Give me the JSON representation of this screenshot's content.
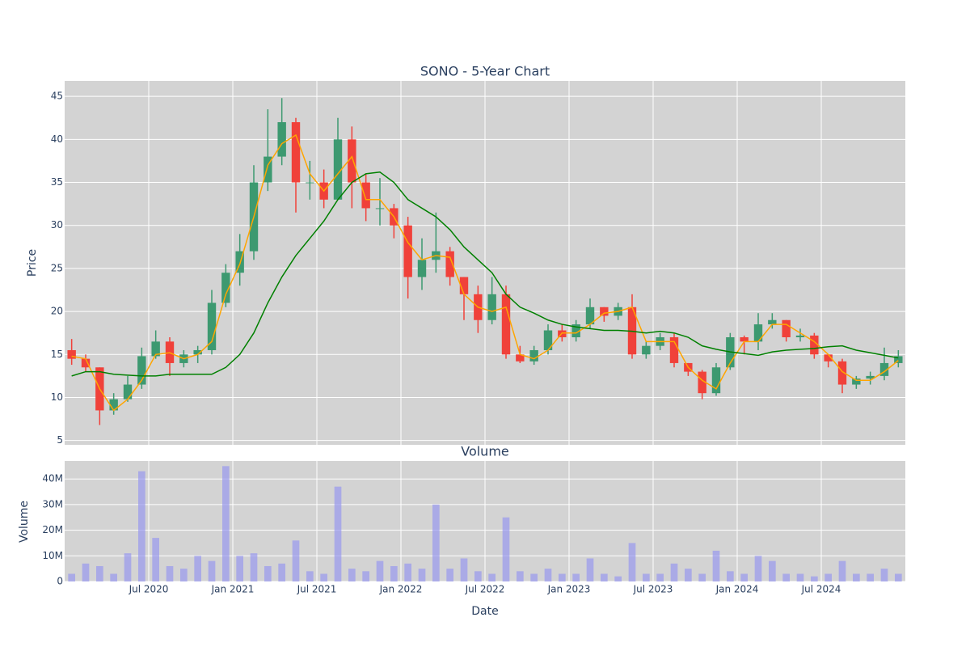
{
  "chart_data": [
    {
      "type": "candlestick",
      "title": "SONO - 5-Year Chart",
      "ylabel": "Price",
      "x": [
        "2020-01",
        "2020-02",
        "2020-03",
        "2020-04",
        "2020-05",
        "2020-06",
        "2020-07",
        "2020-08",
        "2020-09",
        "2020-10",
        "2020-11",
        "2020-12",
        "2021-01",
        "2021-02",
        "2021-03",
        "2021-04",
        "2021-05",
        "2021-06",
        "2021-07",
        "2021-08",
        "2021-09",
        "2021-10",
        "2021-11",
        "2021-12",
        "2022-01",
        "2022-02",
        "2022-03",
        "2022-04",
        "2022-05",
        "2022-06",
        "2022-07",
        "2022-08",
        "2022-09",
        "2022-10",
        "2022-11",
        "2022-12",
        "2023-01",
        "2023-02",
        "2023-03",
        "2023-04",
        "2023-05",
        "2023-06",
        "2023-07",
        "2023-08",
        "2023-09",
        "2023-10",
        "2023-11",
        "2023-12",
        "2024-01",
        "2024-02",
        "2024-03",
        "2024-04",
        "2024-05",
        "2024-06",
        "2024-07",
        "2024-08",
        "2024-09",
        "2024-10",
        "2024-11",
        "2024-12"
      ],
      "open": [
        15.5,
        14.5,
        13.5,
        8.5,
        9.8,
        11.5,
        14.8,
        16.5,
        14,
        15,
        15.5,
        21,
        24.5,
        27,
        35,
        38,
        42,
        35,
        35,
        33,
        40,
        35,
        32,
        32,
        30,
        24,
        26,
        27,
        24,
        22,
        19,
        22,
        15,
        14.2,
        15.5,
        17.8,
        17,
        18.5,
        20.5,
        19.5,
        20.5,
        15,
        16,
        17,
        14,
        13,
        10.5,
        13.5,
        17,
        16.5,
        18.5,
        19,
        17,
        17.2,
        15,
        14.2,
        11.5,
        12.2,
        12.5,
        14
      ],
      "high": [
        16.8,
        15,
        13.5,
        10.5,
        12.5,
        15.8,
        17.8,
        17,
        15.5,
        16,
        22.5,
        25.5,
        29,
        37,
        43.5,
        44.8,
        42.5,
        37.5,
        36.5,
        42.5,
        41.5,
        36,
        35.5,
        32.5,
        31,
        28.5,
        31.5,
        27.5,
        24,
        23,
        24,
        23,
        16,
        16,
        18.5,
        18.5,
        19,
        21.5,
        20.5,
        21,
        22,
        16.5,
        17.5,
        17.5,
        14,
        13.2,
        14,
        17.5,
        17.2,
        19.8,
        19.8,
        19,
        18,
        17.5,
        15,
        14.5,
        12.5,
        13,
        15.8,
        15.5
      ],
      "low": [
        13.8,
        13,
        6.8,
        8,
        9.5,
        11,
        14.5,
        12.5,
        13.5,
        14,
        15,
        20.5,
        23,
        26,
        34,
        37,
        31.5,
        33,
        32,
        33,
        32,
        30.5,
        30,
        28.5,
        21.5,
        22.5,
        24.5,
        23,
        19,
        17.5,
        18.5,
        14.5,
        14,
        13.8,
        15,
        16.5,
        16.5,
        18,
        18.8,
        19,
        14.5,
        14.5,
        15.5,
        13.5,
        12.5,
        9.8,
        10.2,
        13.2,
        15,
        15.5,
        18,
        16.5,
        16.5,
        14.5,
        13.5,
        10.5,
        11,
        11.5,
        12,
        13.5
      ],
      "close": [
        14.5,
        13.5,
        8.5,
        9.8,
        11.5,
        14.8,
        16.5,
        14,
        15,
        15.5,
        21,
        24.5,
        27,
        35,
        38,
        42,
        35,
        35,
        33,
        40,
        35,
        32,
        32,
        30,
        24,
        26,
        27,
        24,
        22,
        19,
        22,
        15,
        14.2,
        15.5,
        17.8,
        17,
        18.5,
        20.5,
        19.5,
        20.5,
        15,
        16,
        17,
        14,
        13,
        10.5,
        13.5,
        17,
        16.5,
        18.5,
        19,
        17,
        17.2,
        15,
        14.2,
        11.5,
        12.2,
        12.5,
        14,
        14.8
      ],
      "increasing_color": "#3d9970",
      "decreasing_color": "#f0413a",
      "series": [
        {
          "color": "#ffa500",
          "values": [
            14.8,
            14.5,
            11,
            8.5,
            9.8,
            12,
            15,
            15.2,
            14.5,
            15,
            16.5,
            22,
            25.5,
            31,
            37,
            39.5,
            40.5,
            36,
            34,
            36,
            38,
            33,
            33,
            31,
            28,
            26,
            26.5,
            26.3,
            22,
            20.5,
            20,
            20.5,
            15,
            14.5,
            15.5,
            17.5,
            17.5,
            18.5,
            19.8,
            20,
            20.5,
            16.5,
            16.5,
            16.5,
            13.5,
            12,
            11,
            14,
            16.5,
            16.5,
            18.5,
            18.5,
            17.5,
            16.5,
            15,
            13,
            12,
            12,
            13,
            14.3
          ]
        },
        {
          "color": "#008000",
          "values": [
            12.5,
            13,
            13,
            12.7,
            12.6,
            12.5,
            12.5,
            12.7,
            12.7,
            12.7,
            12.7,
            13.5,
            15,
            17.5,
            21,
            24,
            26.5,
            28.5,
            30.5,
            33,
            35,
            36,
            36.2,
            35,
            33,
            32,
            31,
            29.5,
            27.5,
            26,
            24.5,
            22,
            20.5,
            19.8,
            19,
            18.5,
            18.2,
            18,
            17.8,
            17.8,
            17.7,
            17.5,
            17.7,
            17.5,
            17,
            16,
            15.6,
            15.3,
            15.1,
            14.9,
            15.3,
            15.5,
            15.6,
            15.7,
            15.9,
            16,
            15.5,
            15.2,
            14.9,
            14.6
          ]
        }
      ],
      "xlim": [
        "2020-01",
        "2025-01"
      ],
      "xticks": [
        "2020-07",
        "2021-01",
        "2021-07",
        "2022-01",
        "2022-07",
        "2023-01",
        "2023-07",
        "2024-01",
        "2024-07"
      ],
      "ylim": [
        4.5,
        46.8
      ],
      "yticks": [
        5,
        10,
        15,
        20,
        25,
        30,
        35,
        40,
        45
      ],
      "grid": true
    },
    {
      "type": "bar",
      "title": "Volume",
      "ylabel": "Volume",
      "xlabel": "Date",
      "color": "#9999ee",
      "x": [
        "2020-01",
        "2020-02",
        "2020-03",
        "2020-04",
        "2020-05",
        "2020-06",
        "2020-07",
        "2020-08",
        "2020-09",
        "2020-10",
        "2020-11",
        "2020-12",
        "2021-01",
        "2021-02",
        "2021-03",
        "2021-04",
        "2021-05",
        "2021-06",
        "2021-07",
        "2021-08",
        "2021-09",
        "2021-10",
        "2021-11",
        "2021-12",
        "2022-01",
        "2022-02",
        "2022-03",
        "2022-04",
        "2022-05",
        "2022-06",
        "2022-07",
        "2022-08",
        "2022-09",
        "2022-10",
        "2022-11",
        "2022-12",
        "2023-01",
        "2023-02",
        "2023-03",
        "2023-04",
        "2023-05",
        "2023-06",
        "2023-07",
        "2023-08",
        "2023-09",
        "2023-10",
        "2023-11",
        "2023-12",
        "2024-01",
        "2024-02",
        "2024-03",
        "2024-04",
        "2024-05",
        "2024-06",
        "2024-07",
        "2024-08",
        "2024-09",
        "2024-10",
        "2024-11",
        "2024-12"
      ],
      "values": [
        3000000,
        7000000,
        6000000,
        3000000,
        11000000,
        43000000,
        17000000,
        6000000,
        5000000,
        10000000,
        8000000,
        45000000,
        10000000,
        11000000,
        6000000,
        7000000,
        16000000,
        4000000,
        3000000,
        37000000,
        5000000,
        4000000,
        8000000,
        6000000,
        7000000,
        5000000,
        30000000,
        5000000,
        9000000,
        4000000,
        3000000,
        25000000,
        4000000,
        3000000,
        5000000,
        3000000,
        3000000,
        9000000,
        3000000,
        2000000,
        15000000,
        3000000,
        3000000,
        7000000,
        5000000,
        3000000,
        12000000,
        4000000,
        3000000,
        10000000,
        8000000,
        3000000,
        3000000,
        2000000,
        3000000,
        8000000,
        3000000,
        3000000,
        5000000,
        3000000
      ],
      "xlim": [
        "2020-01",
        "2025-01"
      ],
      "xticks": [
        {
          "value": "2020-07",
          "label": "Jul 2020"
        },
        {
          "value": "2021-01",
          "label": "Jan 2021"
        },
        {
          "value": "2021-07",
          "label": "Jul 2021"
        },
        {
          "value": "2022-01",
          "label": "Jan 2022"
        },
        {
          "value": "2022-07",
          "label": "Jul 2022"
        },
        {
          "value": "2023-01",
          "label": "Jan 2023"
        },
        {
          "value": "2023-07",
          "label": "Jul 2023"
        },
        {
          "value": "2024-01",
          "label": "Jan 2024"
        },
        {
          "value": "2024-07",
          "label": "Jul 2024"
        }
      ],
      "ylim": [
        0,
        47000000
      ],
      "yticks": [
        0,
        {
          "value": 10000000,
          "label": "10M"
        },
        {
          "value": 20000000,
          "label": "20M"
        },
        {
          "value": 30000000,
          "label": "30M"
        },
        {
          "value": 40000000,
          "label": "40M"
        }
      ],
      "grid": true
    }
  ]
}
